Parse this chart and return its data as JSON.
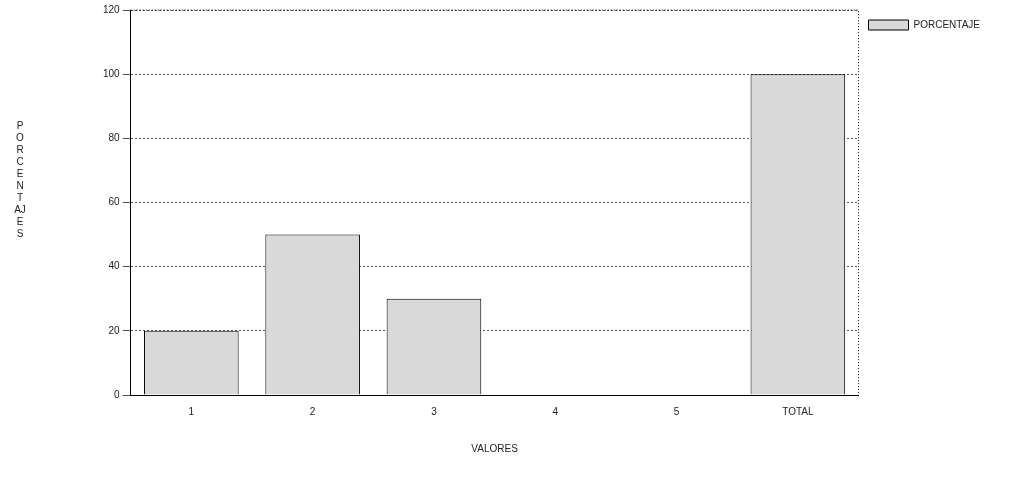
{
  "chart_data": {
    "type": "bar",
    "xlabel": "VALORES",
    "ylabel": "PORCENTAJES",
    "categories": [
      "1",
      "2",
      "3",
      "4",
      "5",
      "TOTAL"
    ],
    "series": [
      {
        "name": "PORCENTAJE",
        "color": "#d9d9d9",
        "values": [
          20,
          50,
          30,
          0,
          0,
          100
        ]
      }
    ],
    "ylim": [
      0,
      120
    ],
    "yticks": [
      0,
      20,
      40,
      60,
      80,
      100,
      120
    ],
    "grid": "y",
    "legend": "top right"
  }
}
